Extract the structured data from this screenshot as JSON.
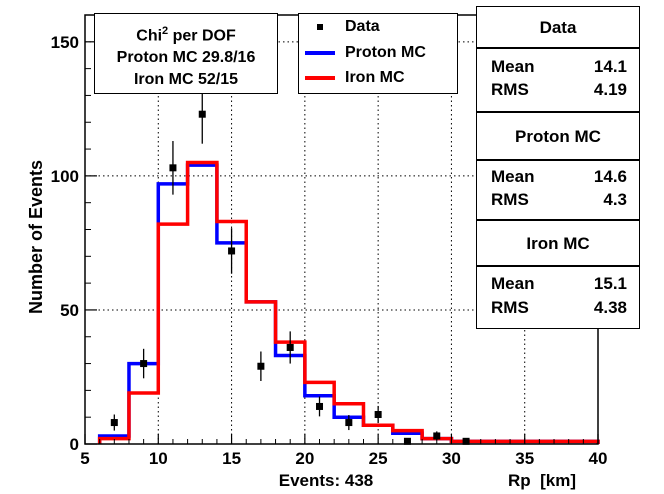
{
  "chart_data": {
    "type": "histogram",
    "title": "",
    "xlabel": "Rp  [km]",
    "ylabel": "Number of Events",
    "xlim": [
      5,
      40
    ],
    "ylim": [
      0,
      160
    ],
    "xticks": [
      5,
      10,
      15,
      20,
      25,
      30,
      35,
      40
    ],
    "yticks": [
      0,
      50,
      100,
      150
    ],
    "grid": true,
    "footer": "Events: 438",
    "bin_edges": [
      6,
      8,
      10,
      12,
      14,
      16,
      18,
      20,
      22,
      24,
      26,
      28,
      30,
      32,
      34,
      36,
      38,
      40
    ],
    "series": [
      {
        "name": "Proton MC",
        "color": "#0000ff",
        "values": [
          3,
          30,
          97,
          104,
          75,
          53,
          33,
          18,
          10,
          7,
          4,
          2,
          1,
          1,
          1,
          1,
          1
        ]
      },
      {
        "name": "Iron MC",
        "color": "#ff0000",
        "values": [
          2,
          19,
          82,
          105,
          83,
          53,
          38,
          23,
          15,
          7,
          5,
          2,
          1,
          1,
          1,
          1,
          1
        ]
      }
    ],
    "data_points": {
      "name": "Data",
      "x": [
        7,
        9,
        11,
        13,
        15,
        17,
        19,
        21,
        23,
        25,
        27,
        29,
        31
      ],
      "y": [
        8,
        30,
        103,
        123,
        72,
        29,
        36,
        14,
        8,
        11,
        1,
        3,
        1
      ],
      "err": [
        3,
        5.5,
        10,
        11,
        8.5,
        5.5,
        6,
        3.7,
        2.8,
        3.2,
        1,
        1.7,
        1
      ]
    },
    "chi_box": {
      "line1_prefix": "Chi",
      "line1_sup": "2",
      "line1_suffix": " per DOF",
      "line2": "Proton MC 29.8/16",
      "line3": "Iron MC 52/15"
    },
    "legend": [
      {
        "label": "Data",
        "kind": "marker",
        "color": "#000000"
      },
      {
        "label": "Proton MC",
        "kind": "line",
        "color": "#0000ff"
      },
      {
        "label": "Iron MC",
        "kind": "line",
        "color": "#ff0000"
      }
    ],
    "stats": [
      {
        "title": "Data",
        "mean_label": "Mean",
        "mean": "14.1",
        "rms_label": "RMS",
        "rms": "4.19"
      },
      {
        "title": "Proton MC",
        "mean_label": "Mean",
        "mean": "14.6",
        "rms_label": "RMS",
        "rms": "4.3"
      },
      {
        "title": "Iron MC",
        "mean_label": "Mean",
        "mean": "15.1",
        "rms_label": "RMS",
        "rms": "4.38"
      }
    ]
  }
}
